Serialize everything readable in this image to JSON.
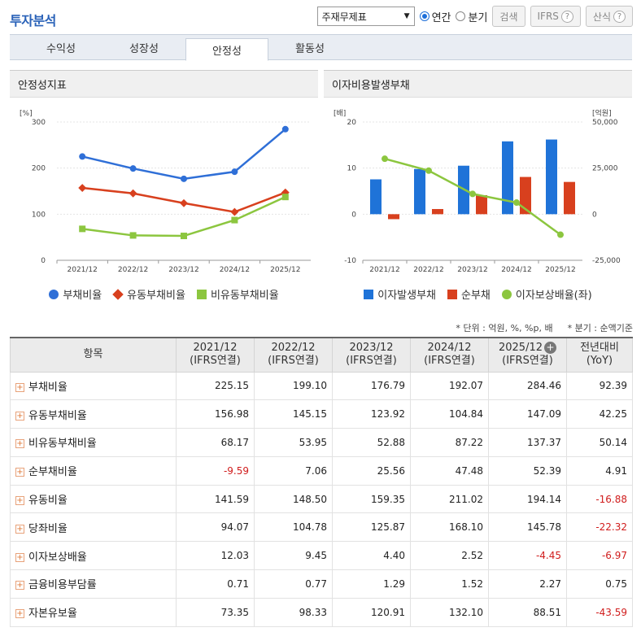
{
  "title": "투자분석",
  "controls": {
    "select_value": "주재무제표",
    "radio_annual": "연간",
    "radio_quarter": "분기",
    "search_label": "검색",
    "ifrs_label": "IFRS",
    "formula_label": "산식",
    "help_glyph": "?"
  },
  "tabs": [
    {
      "label": "수익성"
    },
    {
      "label": "성장성"
    },
    {
      "label": "안정성"
    },
    {
      "label": "활동성"
    }
  ],
  "panel_left": {
    "title": "안정성지표"
  },
  "panel_right": {
    "title": "이자비용발생부채"
  },
  "chart_data": [
    {
      "type": "line",
      "title": "안정성지표",
      "ylabel": "[%]",
      "x": [
        "2021/12",
        "2022/12",
        "2023/12",
        "2024/12",
        "2025/12"
      ],
      "ylim": [
        0,
        300
      ],
      "yticks": [
        0,
        100,
        200,
        300
      ],
      "legend": "bottom",
      "series": [
        {
          "name": "부채비율",
          "color": "#2f6fd7",
          "marker": "circle",
          "values": [
            225.15,
            199.1,
            176.79,
            192.07,
            284.46
          ]
        },
        {
          "name": "유동부채비율",
          "color": "#d8401e",
          "marker": "diamond",
          "values": [
            156.98,
            145.15,
            123.92,
            104.84,
            147.09
          ]
        },
        {
          "name": "비유동부채비율",
          "color": "#8cc63f",
          "marker": "square",
          "values": [
            68.17,
            53.95,
            52.88,
            87.22,
            137.37
          ]
        }
      ]
    },
    {
      "type": "bar",
      "title": "이자비용발생부채",
      "ylabel": "[배]",
      "y2label": "[억원]",
      "x": [
        "2021/12",
        "2022/12",
        "2023/12",
        "2024/12",
        "2025/12"
      ],
      "ylim": [
        -10,
        20
      ],
      "yticks": [
        -10,
        0,
        10,
        20
      ],
      "y2lim": [
        -25000,
        50000
      ],
      "y2ticks": [
        "-25,000",
        "0",
        "25,000",
        "50,000"
      ],
      "legend": "bottom",
      "series": [
        {
          "name": "이자발생부채",
          "color": "#1f73d8",
          "axis": "right",
          "type": "bar",
          "values": [
            18900,
            24500,
            26300,
            39500,
            40500
          ]
        },
        {
          "name": "순부채",
          "color": "#d8401e",
          "axis": "right",
          "type": "bar",
          "values": [
            -2700,
            2800,
            10300,
            20200,
            17500
          ]
        },
        {
          "name": "이자보상배율(좌)",
          "color": "#8cc63f",
          "axis": "left",
          "type": "line",
          "values": [
            12.03,
            9.45,
            4.4,
            2.52,
            -4.45
          ]
        }
      ]
    }
  ],
  "notes": {
    "unit": "* 단위 : 억원, %, %p, 배",
    "basis": "* 분기 : 순액기준"
  },
  "table": {
    "header_item": "항목",
    "columns": [
      {
        "line1": "2021/12",
        "line2": "(IFRS연결)"
      },
      {
        "line1": "2022/12",
        "line2": "(IFRS연결)"
      },
      {
        "line1": "2023/12",
        "line2": "(IFRS연결)"
      },
      {
        "line1": "2024/12",
        "line2": "(IFRS연결)"
      },
      {
        "line1": "2025/12",
        "line2": "(IFRS연결)"
      },
      {
        "line1": "전년대비",
        "line2": "(YoY)"
      }
    ],
    "rows": [
      {
        "name": "부채비율",
        "values": [
          "225.15",
          "199.10",
          "176.79",
          "192.07",
          "284.46",
          "92.39"
        ]
      },
      {
        "name": "유동부채비율",
        "values": [
          "156.98",
          "145.15",
          "123.92",
          "104.84",
          "147.09",
          "42.25"
        ]
      },
      {
        "name": "비유동부채비율",
        "values": [
          "68.17",
          "53.95",
          "52.88",
          "87.22",
          "137.37",
          "50.14"
        ]
      },
      {
        "name": "순부채비율",
        "values": [
          "-9.59",
          "7.06",
          "25.56",
          "47.48",
          "52.39",
          "4.91"
        ]
      },
      {
        "name": "유동비율",
        "values": [
          "141.59",
          "148.50",
          "159.35",
          "211.02",
          "194.14",
          "-16.88"
        ]
      },
      {
        "name": "당좌비율",
        "values": [
          "94.07",
          "104.78",
          "125.87",
          "168.10",
          "145.78",
          "-22.32"
        ]
      },
      {
        "name": "이자보상배율",
        "values": [
          "12.03",
          "9.45",
          "4.40",
          "2.52",
          "-4.45",
          "-6.97"
        ]
      },
      {
        "name": "금융비용부담률",
        "values": [
          "0.71",
          "0.77",
          "1.29",
          "1.52",
          "2.27",
          "0.75"
        ]
      },
      {
        "name": "자본유보율",
        "values": [
          "73.35",
          "98.33",
          "120.91",
          "132.10",
          "88.51",
          "-43.59"
        ]
      }
    ]
  }
}
